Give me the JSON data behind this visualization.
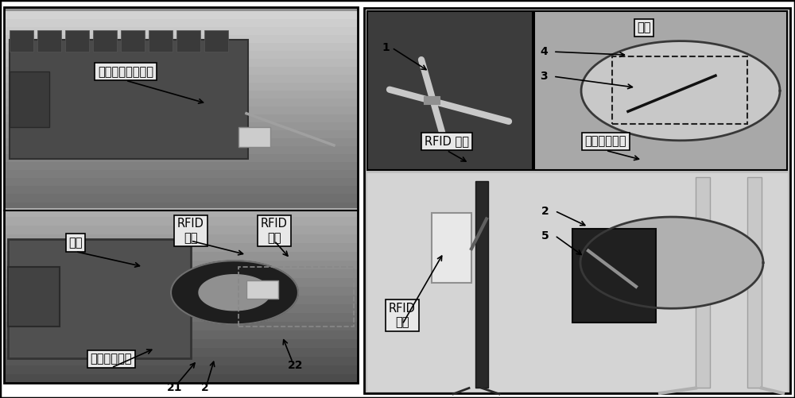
{
  "figure_width": 10.0,
  "figure_height": 5.01,
  "dpi": 100,
  "bg_color": "#ffffff",
  "left_panel": {
    "top_label": "内置线性反射物体",
    "label_zhuanzhou": "转轴",
    "label_rfid_tag1": "RFID\n标签",
    "label_rfid_ant1": "RFID\n天线",
    "label_metal1": "金属反射物体",
    "num21": "21",
    "num2_left": "2",
    "num22": "22"
  },
  "right_panel": {
    "label_zhuanpan": "转盘",
    "label_rfid_tag2": "RFID 标签",
    "label_metal2": "金属反射物体",
    "label_rfid_ant2": "RFID\n天线",
    "num1": "1",
    "num2": "2",
    "num3": "3",
    "num4": "4",
    "num5": "5"
  }
}
